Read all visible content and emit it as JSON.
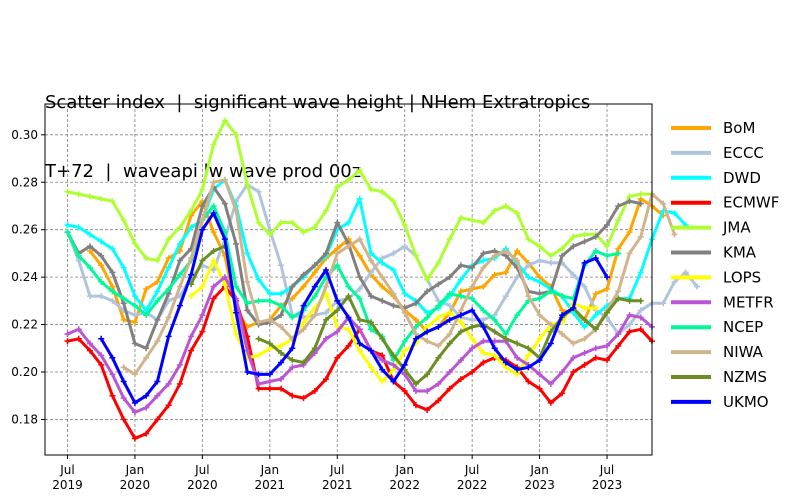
{
  "chart_data": {
    "type": "line",
    "title_lines": [
      "Scatter index  |  significant wave height | NHem Extratropics",
      "T+72  |  waveapi lw wave prod 00z"
    ],
    "xlabel": "",
    "ylabel": "",
    "grid": true,
    "legend": "outside right",
    "xlim": [
      "2019-05",
      "2023-11"
    ],
    "ylim": [
      0.165,
      0.313
    ],
    "x_ticks": [
      {
        "date": "2019-07",
        "label": [
          "Jul",
          "2019"
        ]
      },
      {
        "date": "2020-01",
        "label": [
          "Jan",
          "2020"
        ]
      },
      {
        "date": "2020-07",
        "label": [
          "Jul",
          "2020"
        ]
      },
      {
        "date": "2021-01",
        "label": [
          "Jan",
          "2021"
        ]
      },
      {
        "date": "2021-07",
        "label": [
          "Jul",
          "2021"
        ]
      },
      {
        "date": "2022-01",
        "label": [
          "Jan",
          "2022"
        ]
      },
      {
        "date": "2022-07",
        "label": [
          "Jul",
          "2022"
        ]
      },
      {
        "date": "2023-01",
        "label": [
          "Jan",
          "2023"
        ]
      },
      {
        "date": "2023-07",
        "label": [
          "Jul",
          "2023"
        ]
      }
    ],
    "y_ticks": [
      0.18,
      0.2,
      0.22,
      0.24,
      0.26,
      0.28,
      0.3
    ],
    "y_tick_labels": [
      "0.18",
      "0.20",
      "0.22",
      "0.24",
      "0.26",
      "0.28",
      "0.30"
    ],
    "series": [
      {
        "name": "BoM",
        "color": "#ffa500",
        "start": "2019-09",
        "values": [
          0.251,
          0.245,
          0.236,
          0.222,
          0.221,
          0.235,
          0.238,
          0.248,
          0.251,
          0.266,
          0.272,
          0.259,
          0.249,
          0.226,
          0.219,
          0.221,
          0.222,
          0.228,
          0.231,
          0.236,
          0.242,
          0.248,
          0.252,
          0.256,
          0.249,
          0.241,
          0.236,
          0.232,
          0.226,
          0.222,
          0.217,
          0.219,
          0.225,
          0.234,
          0.235,
          0.236,
          0.241,
          0.242,
          0.251,
          0.246,
          0.24,
          0.236,
          0.226,
          0.225,
          0.222,
          0.233,
          0.235,
          0.252,
          0.259,
          0.273,
          0.27,
          0.266
        ]
      },
      {
        "name": "ECCC",
        "color": "#b0c4de",
        "start": "2019-07",
        "values": [
          0.259,
          0.247,
          0.232,
          0.232,
          0.23,
          0.226,
          0.224,
          0.225,
          0.222,
          0.23,
          0.232,
          0.24,
          0.245,
          0.243,
          0.256,
          0.272,
          0.279,
          0.276,
          0.26,
          0.245,
          0.224,
          0.223,
          0.224,
          0.225,
          0.23,
          0.231,
          0.235,
          0.242,
          0.248,
          0.25,
          0.253,
          0.249,
          0.239,
          0.23,
          0.228,
          0.223,
          0.222,
          0.222,
          0.224,
          0.232,
          0.24,
          0.245,
          0.247,
          0.246,
          0.246,
          0.241,
          0.236,
          0.226,
          0.223,
          0.216,
          0.22,
          0.226,
          0.229,
          0.229,
          0.238,
          0.242,
          0.236
        ]
      },
      {
        "name": "DWD",
        "color": "#00ffff",
        "start": "2019-07",
        "values": [
          0.262,
          0.261,
          0.258,
          0.255,
          0.252,
          0.244,
          0.232,
          0.226,
          0.234,
          0.244,
          0.254,
          0.261,
          0.264,
          0.277,
          0.281,
          0.27,
          0.25,
          0.239,
          0.233,
          0.233,
          0.236,
          0.24,
          0.245,
          0.249,
          0.26,
          0.263,
          0.273,
          0.25,
          0.246,
          0.243,
          0.233,
          0.23,
          0.225,
          0.227,
          0.232,
          0.239,
          0.245,
          0.247,
          0.248,
          0.252,
          0.246,
          0.24,
          0.238,
          0.235,
          0.232,
          0.225,
          0.219,
          0.224,
          0.228,
          0.231,
          0.231,
          0.242,
          0.256,
          0.268,
          0.267,
          0.262
        ]
      },
      {
        "name": "ECMWF",
        "color": "#ff0000",
        "start": "2019-07",
        "values": [
          0.213,
          0.214,
          0.209,
          0.203,
          0.19,
          0.18,
          0.172,
          0.174,
          0.18,
          0.186,
          0.195,
          0.209,
          0.217,
          0.231,
          0.236,
          0.23,
          0.215,
          0.193,
          0.193,
          0.193,
          0.19,
          0.189,
          0.192,
          0.197,
          0.206,
          0.211,
          0.218,
          0.209,
          0.207,
          0.196,
          0.192,
          0.186,
          0.184,
          0.188,
          0.193,
          0.197,
          0.2,
          0.204,
          0.206,
          0.205,
          0.202,
          0.196,
          0.193,
          0.187,
          0.191,
          0.2,
          0.203,
          0.206,
          0.205,
          0.211,
          0.217,
          0.218,
          0.213
        ]
      },
      {
        "name": "JMA",
        "color": "#adff2f",
        "start": "2019-07",
        "values": [
          0.276,
          0.275,
          0.274,
          0.273,
          0.272,
          0.264,
          0.254,
          0.248,
          0.247,
          0.256,
          0.261,
          0.268,
          0.277,
          0.296,
          0.306,
          0.3,
          0.279,
          0.263,
          0.258,
          0.263,
          0.263,
          0.259,
          0.261,
          0.268,
          0.278,
          0.281,
          0.285,
          0.277,
          0.276,
          0.272,
          0.262,
          0.249,
          0.239,
          0.246,
          0.256,
          0.265,
          0.264,
          0.263,
          0.268,
          0.27,
          0.267,
          0.256,
          0.253,
          0.249,
          0.252,
          0.257,
          0.258,
          0.258,
          0.253,
          0.264,
          0.274,
          0.275,
          0.275
        ]
      },
      {
        "name": "KMA",
        "color": "#808080",
        "start": "2019-07",
        "values": [
          0.259,
          0.25,
          0.253,
          0.249,
          0.242,
          0.229,
          0.212,
          0.21,
          0.222,
          0.233,
          0.247,
          0.252,
          0.27,
          0.278,
          0.271,
          0.254,
          0.226,
          0.22,
          0.221,
          0.224,
          0.236,
          0.241,
          0.245,
          0.25,
          0.263,
          0.254,
          0.24,
          0.232,
          0.23,
          0.228,
          0.227,
          0.229,
          0.234,
          0.237,
          0.24,
          0.245,
          0.244,
          0.25,
          0.251,
          0.249,
          0.244,
          0.234,
          0.233,
          0.234,
          0.249,
          0.253,
          0.255,
          0.257,
          0.262,
          0.27,
          0.272,
          0.271
        ]
      },
      {
        "name": "LOPS",
        "color": "#ffff00",
        "start": "2020-06",
        "values": [
          0.232,
          0.236,
          0.247,
          0.237,
          0.216,
          0.206,
          0.207,
          0.21,
          0.211,
          0.214,
          0.221,
          0.227,
          0.233,
          0.219,
          0.218,
          0.209,
          0.202,
          0.196,
          0.201,
          0.209,
          0.212,
          0.219,
          0.223,
          0.225,
          0.221,
          0.214,
          0.208,
          0.207,
          0.202,
          0.199,
          0.207,
          0.214,
          0.22,
          0.221,
          0.229,
          0.227,
          0.227
        ]
      },
      {
        "name": "METFR",
        "color": "#ba55d3",
        "start": "2019-07",
        "values": [
          0.216,
          0.218,
          0.212,
          0.207,
          0.199,
          0.189,
          0.183,
          0.185,
          0.19,
          0.195,
          0.203,
          0.215,
          0.224,
          0.236,
          0.24,
          0.231,
          0.209,
          0.195,
          0.196,
          0.197,
          0.202,
          0.203,
          0.208,
          0.214,
          0.217,
          0.223,
          0.218,
          0.209,
          0.205,
          0.203,
          0.199,
          0.192,
          0.192,
          0.195,
          0.2,
          0.205,
          0.21,
          0.213,
          0.213,
          0.213,
          0.206,
          0.203,
          0.199,
          0.195,
          0.2,
          0.206,
          0.208,
          0.21,
          0.211,
          0.216,
          0.224,
          0.223,
          0.219
        ]
      },
      {
        "name": "NCEP",
        "color": "#00fa9a",
        "start": "2019-07",
        "values": [
          0.259,
          0.249,
          0.244,
          0.238,
          0.234,
          0.231,
          0.228,
          0.224,
          0.23,
          0.235,
          0.241,
          0.247,
          0.264,
          0.27,
          0.259,
          0.236,
          0.229,
          0.23,
          0.23,
          0.228,
          0.223,
          0.226,
          0.232,
          0.24,
          0.245,
          0.236,
          0.231,
          0.218,
          0.215,
          0.205,
          0.213,
          0.219,
          0.223,
          0.228,
          0.233,
          0.232,
          0.231,
          0.226,
          0.222,
          0.216,
          0.224,
          0.23,
          0.231,
          0.234,
          0.232,
          0.231,
          0.245,
          0.251,
          0.249,
          0.25
        ]
      },
      {
        "name": "NIWA",
        "color": "#d2b48c",
        "start": "2019-12",
        "values": [
          0.202,
          0.199,
          0.206,
          0.213,
          0.223,
          0.236,
          0.248,
          0.264,
          0.28,
          0.281,
          0.268,
          0.238,
          0.221,
          0.222,
          0.219,
          0.214,
          0.218,
          0.224,
          0.236,
          0.25,
          0.253,
          0.256,
          0.247,
          0.24,
          0.233,
          0.225,
          0.216,
          0.213,
          0.211,
          0.216,
          0.226,
          0.236,
          0.244,
          0.249,
          0.251,
          0.247,
          0.232,
          0.224,
          0.22,
          0.216,
          0.212,
          0.214,
          0.218,
          0.226,
          0.234,
          0.25,
          0.257,
          0.275,
          0.271,
          0.258
        ]
      },
      {
        "name": "NZMS",
        "color": "#6b8e23",
        "start": "2020-06",
        "values": [
          0.237,
          0.247,
          0.251,
          0.253,
          null,
          null,
          0.214,
          0.212,
          0.208,
          0.205,
          0.204,
          0.21,
          0.222,
          0.226,
          0.232,
          0.222,
          0.221,
          0.214,
          0.207,
          0.201,
          0.195,
          0.199,
          0.206,
          0.212,
          0.217,
          0.219,
          0.22,
          0.217,
          0.214,
          0.212,
          0.21,
          0.206,
          0.217,
          0.223,
          0.227,
          0.222,
          0.218,
          0.225,
          0.231,
          0.23,
          0.23
        ]
      },
      {
        "name": "UKMO",
        "color": "#0000ff",
        "start": "2019-10",
        "values": [
          0.214,
          0.206,
          0.196,
          0.187,
          0.19,
          0.196,
          0.215,
          0.228,
          0.241,
          0.26,
          0.267,
          0.256,
          0.225,
          0.2,
          0.199,
          0.199,
          0.204,
          0.21,
          0.228,
          0.236,
          0.243,
          0.23,
          0.223,
          0.212,
          0.209,
          0.201,
          0.196,
          0.203,
          0.214,
          0.217,
          0.219,
          0.222,
          0.224,
          0.226,
          0.219,
          0.21,
          0.204,
          0.201,
          0.202,
          0.205,
          0.212,
          0.224,
          0.227,
          0.246,
          0.248,
          0.24
        ]
      }
    ]
  }
}
